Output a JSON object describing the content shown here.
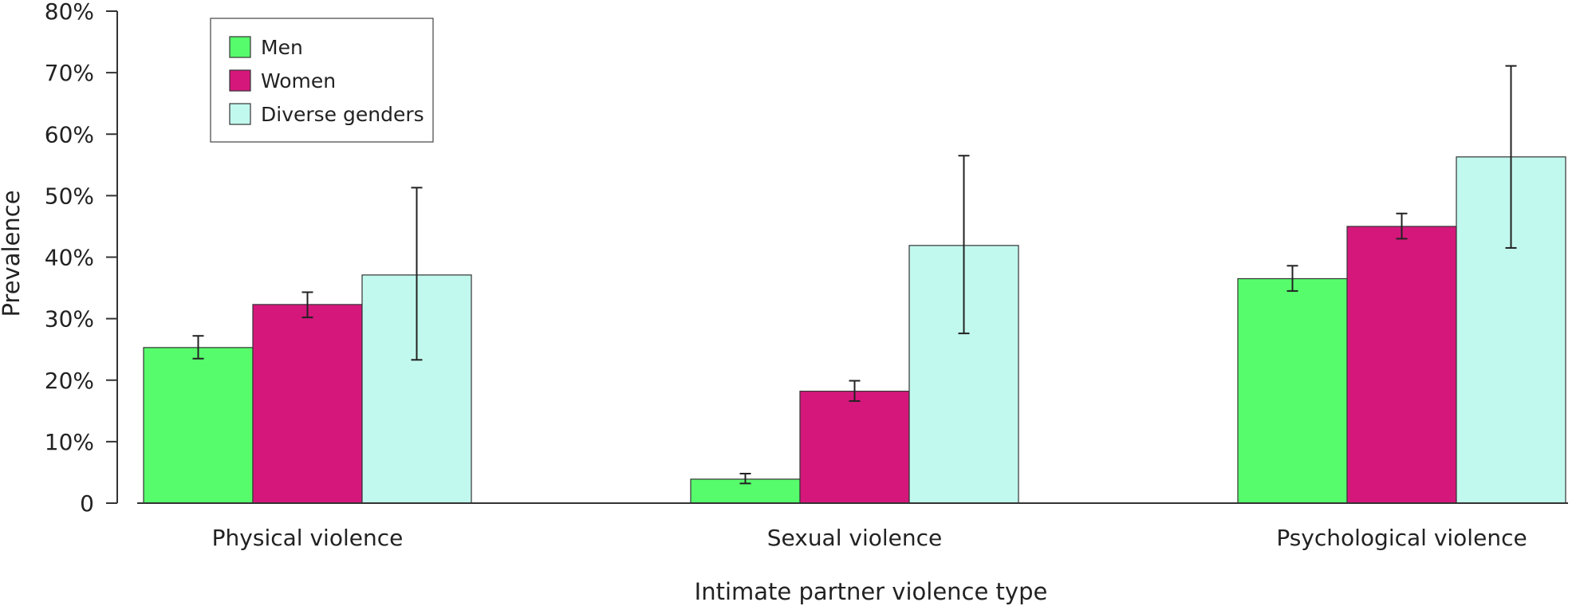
{
  "chart_data": {
    "type": "bar",
    "categories": [
      "Physical violence",
      "Sexual violence",
      "Psychological violence"
    ],
    "series": [
      {
        "name": "Men",
        "color": "#57fc6d",
        "values": [
          25.3,
          3.9,
          36.5
        ],
        "ci_low": [
          23.5,
          3.2,
          34.5
        ],
        "ci_high": [
          27.2,
          4.8,
          38.6
        ]
      },
      {
        "name": "Women",
        "color": "#d5177c",
        "values": [
          32.3,
          18.2,
          45.0
        ],
        "ci_low": [
          30.2,
          16.6,
          43.0
        ],
        "ci_high": [
          34.3,
          19.9,
          47.1
        ]
      },
      {
        "name": "Diverse genders",
        "color": "#c2f9ee",
        "values": [
          37.1,
          41.9,
          56.3
        ],
        "ci_low": [
          23.3,
          27.6,
          41.5
        ],
        "ci_high": [
          51.3,
          56.5,
          71.1
        ]
      }
    ],
    "ylim": [
      0,
      80
    ],
    "yticks": [
      {
        "value": 0,
        "label": "0"
      },
      {
        "value": 10,
        "label": "10%"
      },
      {
        "value": 20,
        "label": "20%"
      },
      {
        "value": 30,
        "label": "30%"
      },
      {
        "value": 40,
        "label": "40%"
      },
      {
        "value": 50,
        "label": "50%"
      },
      {
        "value": 60,
        "label": "60%"
      },
      {
        "value": 70,
        "label": "70%"
      },
      {
        "value": 80,
        "label": "80%"
      }
    ],
    "xlabel": "Intimate partner violence type",
    "ylabel": "Prevalence",
    "legend_position": "top-left",
    "grid": false
  }
}
